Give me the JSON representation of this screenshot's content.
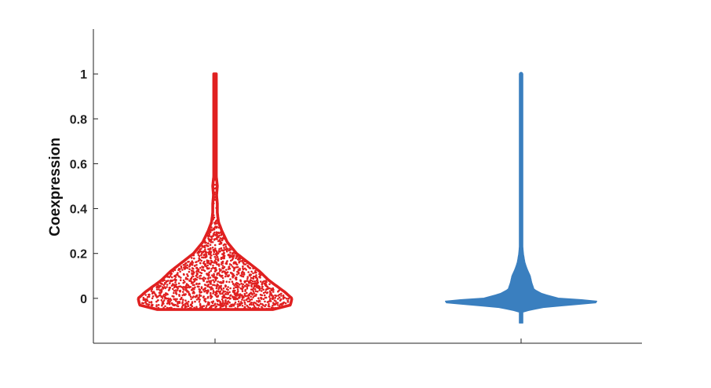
{
  "chart_data": {
    "type": "violin",
    "title": "",
    "xlabel": "",
    "ylabel": "Coexpression",
    "ylim": [
      -0.2,
      1.2
    ],
    "yticks": [
      0,
      0.2,
      0.4,
      0.6,
      0.8,
      1
    ],
    "ytick_labels": [
      "0",
      "0.2",
      "0.4",
      "0.6",
      "0.8",
      "1"
    ],
    "categories": [
      "",
      ""
    ],
    "grid": false,
    "legend": "none",
    "series": [
      {
        "color": "#e02020",
        "style": "outline-with-points",
        "y_min": -0.05,
        "y_max": 1.0,
        "density": [
          [
            -0.05,
            0.75
          ],
          [
            -0.03,
            0.98
          ],
          [
            0.0,
            1.0
          ],
          [
            0.03,
            0.9
          ],
          [
            0.08,
            0.7
          ],
          [
            0.12,
            0.58
          ],
          [
            0.16,
            0.43
          ],
          [
            0.2,
            0.28
          ],
          [
            0.25,
            0.16
          ],
          [
            0.3,
            0.09
          ],
          [
            0.34,
            0.045
          ],
          [
            0.38,
            0.03
          ],
          [
            0.42,
            0.03
          ],
          [
            0.46,
            0.02
          ],
          [
            0.5,
            0.03
          ],
          [
            0.55,
            0.015
          ],
          [
            0.65,
            0.012
          ],
          [
            0.75,
            0.01
          ],
          [
            0.85,
            0.009
          ],
          [
            0.95,
            0.008
          ],
          [
            1.0,
            0.006
          ]
        ]
      },
      {
        "color": "#3a7fbf",
        "style": "filled",
        "y_min": -0.11,
        "y_max": 1.0,
        "density": [
          [
            -0.11,
            0.0
          ],
          [
            -0.06,
            0.015
          ],
          [
            -0.04,
            0.3
          ],
          [
            -0.02,
            0.98
          ],
          [
            -0.01,
            1.0
          ],
          [
            0.0,
            0.5
          ],
          [
            0.02,
            0.28
          ],
          [
            0.04,
            0.17
          ],
          [
            0.07,
            0.14
          ],
          [
            0.1,
            0.12
          ],
          [
            0.13,
            0.08
          ],
          [
            0.16,
            0.05
          ],
          [
            0.2,
            0.03
          ],
          [
            0.25,
            0.018
          ],
          [
            0.3,
            0.011
          ],
          [
            0.4,
            0.007
          ],
          [
            0.5,
            0.005
          ],
          [
            0.7,
            0.004
          ],
          [
            0.9,
            0.003
          ],
          [
            1.0,
            0.003
          ]
        ]
      }
    ]
  }
}
